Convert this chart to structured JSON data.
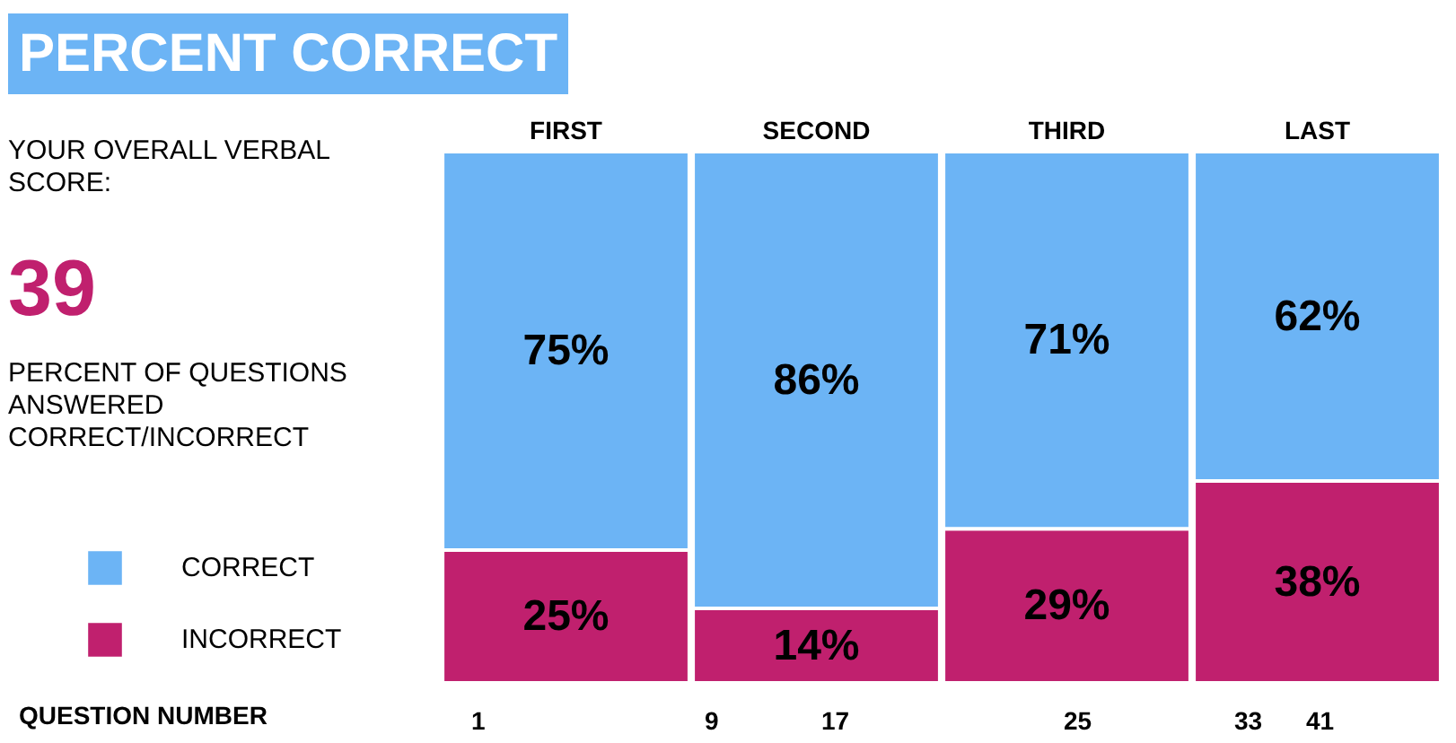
{
  "chart_data": {
    "type": "bar",
    "title": "PERCENT CORRECT",
    "subtitle": "YOUR OVERALL VERBAL SCORE:",
    "annotations": [
      "39",
      "PERCENT OF QUESTIONS ANSWERED CORRECT/INCORRECT",
      "QUESTION NUMBER",
      "1",
      "9",
      "17",
      "25",
      "33",
      "41"
    ],
    "categories": [
      "FIRST",
      "SECOND",
      "THIRD",
      "LAST"
    ],
    "stacked": true,
    "legend": "bottom left",
    "series": [
      {
        "name": "INCORRECT",
        "color": "#c0206e",
        "values": [
          25,
          14,
          29,
          38
        ],
        "value_labels": [
          "25%",
          "14%",
          "29%",
          "38%"
        ]
      },
      {
        "name": "CORRECT",
        "color": "#6cb4f5",
        "values": [
          75,
          86,
          71,
          62
        ],
        "value_labels": [
          "75%",
          "86%",
          "71%",
          "62%"
        ]
      }
    ]
  }
}
